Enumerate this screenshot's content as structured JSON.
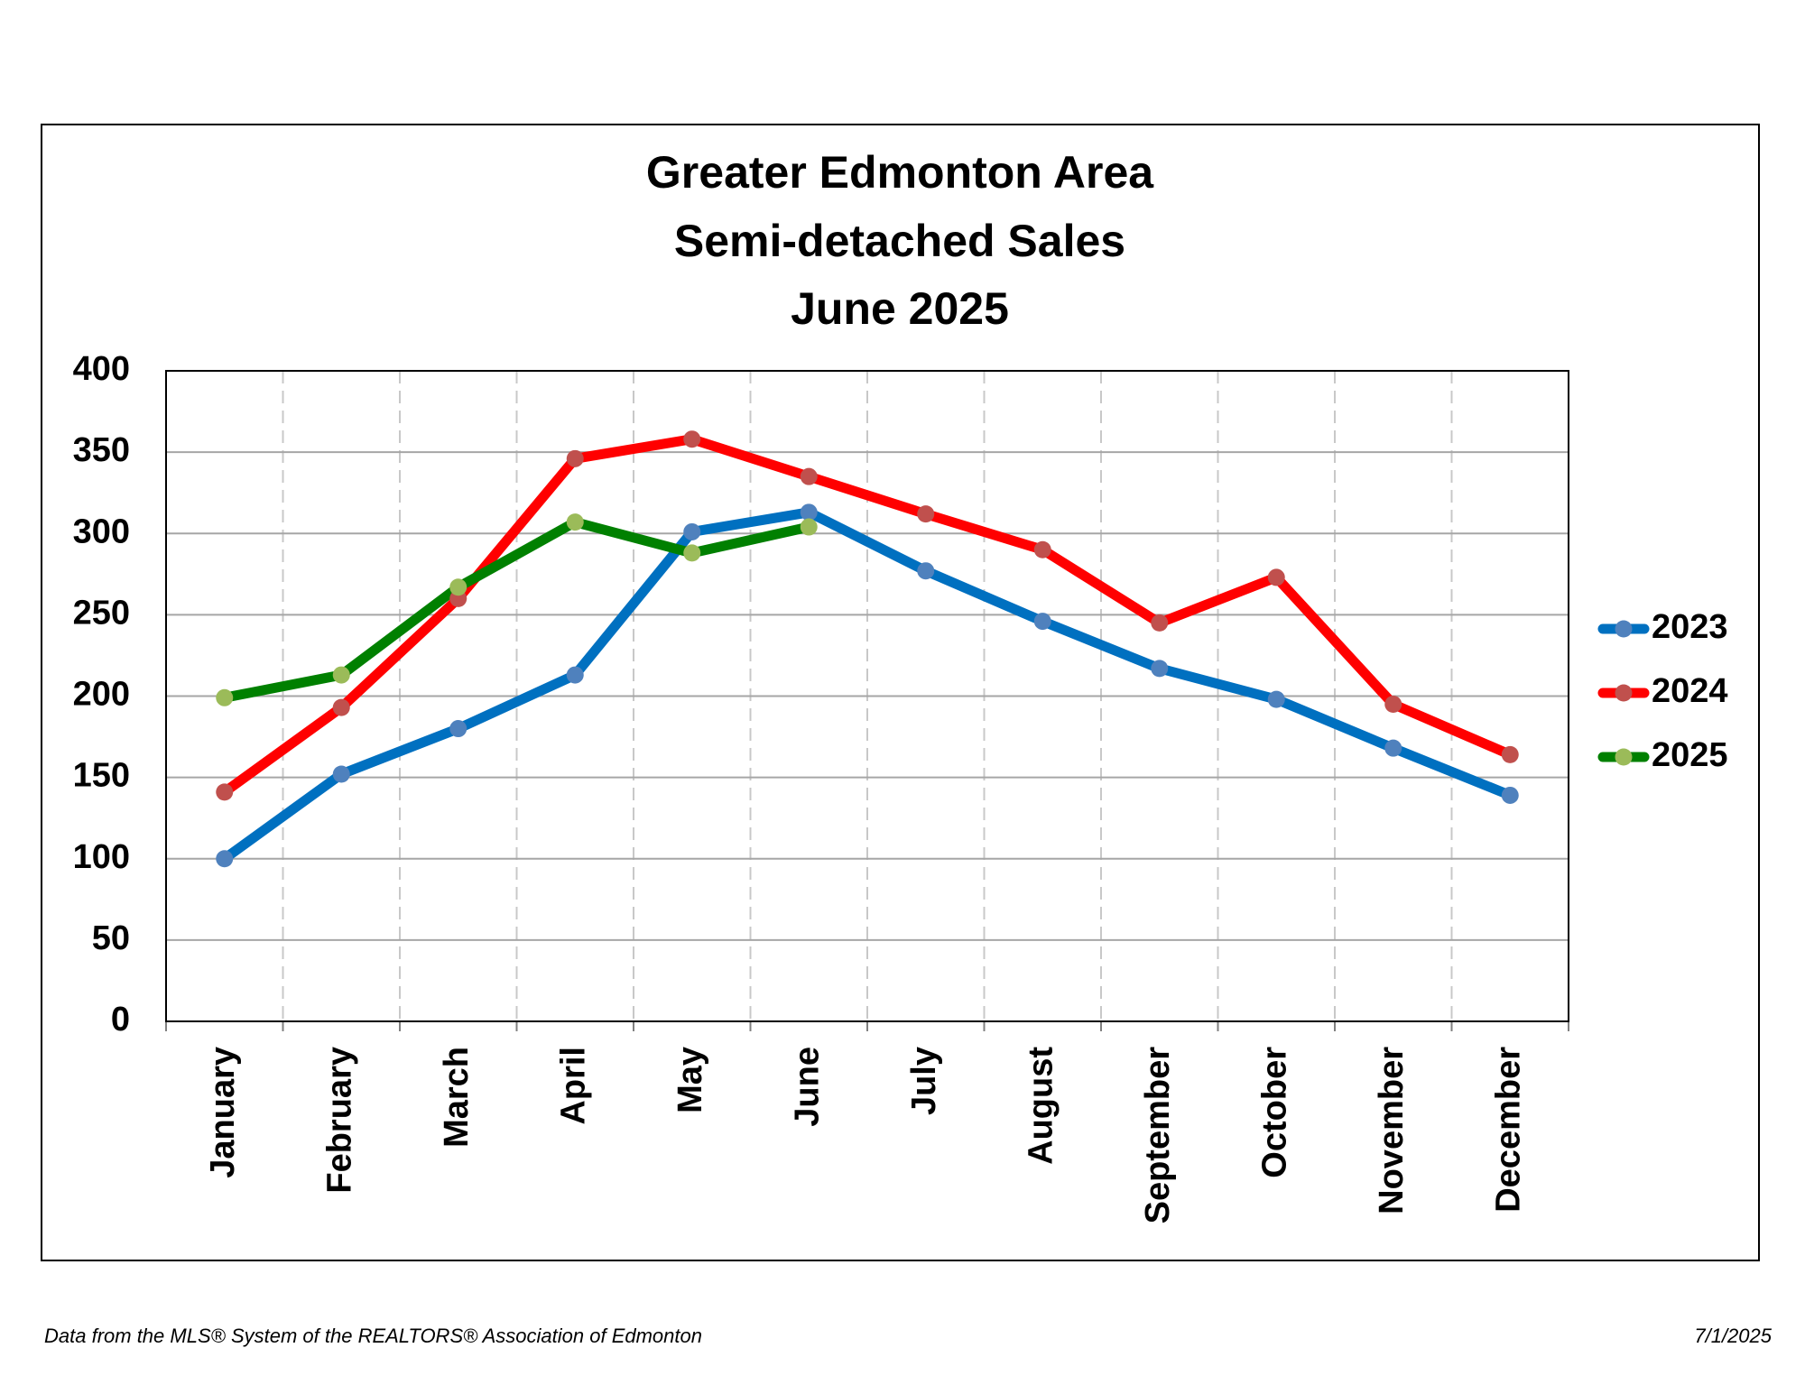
{
  "chart_data": {
    "type": "line",
    "title": [
      "Greater Edmonton Area",
      "Semi-detached Sales",
      "June 2025"
    ],
    "categories": [
      "January",
      "February",
      "March",
      "April",
      "May",
      "June",
      "July",
      "August",
      "September",
      "October",
      "November",
      "December"
    ],
    "series": [
      {
        "name": "2023",
        "color": "#0070c0",
        "marker_color": "#4f81bd",
        "values": [
          100,
          152,
          180,
          213,
          301,
          313,
          277,
          246,
          217,
          198,
          168,
          139
        ]
      },
      {
        "name": "2024",
        "color": "#ff0000",
        "marker_color": "#c0504d",
        "values": [
          141,
          193,
          260,
          346,
          358,
          335,
          312,
          290,
          245,
          273,
          195,
          164
        ]
      },
      {
        "name": "2025",
        "color": "#008000",
        "marker_color": "#9bbb59",
        "values": [
          199,
          213,
          267,
          307,
          288,
          304,
          null,
          null,
          null,
          null,
          null,
          null
        ]
      }
    ],
    "ylim": [
      0,
      400
    ],
    "yticks": [
      0,
      50,
      100,
      150,
      200,
      250,
      300,
      350,
      400
    ],
    "grid": true,
    "legend": "right"
  },
  "footer": {
    "source": "Data from the MLS® System of the REALTORS® Association of Edmonton",
    "date": "7/1/2025"
  }
}
